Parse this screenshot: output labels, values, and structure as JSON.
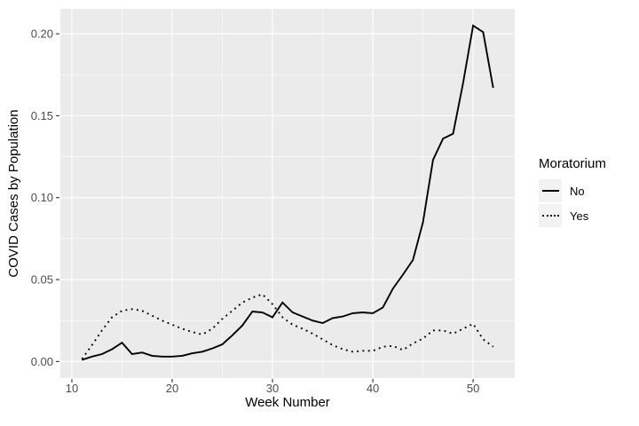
{
  "chart_data": {
    "type": "line",
    "title": "",
    "xlabel": "Week Number",
    "ylabel": "COVID Cases by Population",
    "x": [
      11,
      12,
      13,
      14,
      15,
      16,
      17,
      18,
      19,
      20,
      21,
      22,
      23,
      24,
      25,
      26,
      27,
      28,
      29,
      30,
      31,
      32,
      33,
      34,
      35,
      36,
      37,
      38,
      39,
      40,
      41,
      42,
      43,
      44,
      45,
      46,
      47,
      48,
      49,
      50,
      51,
      52
    ],
    "series": [
      {
        "name": "No",
        "linetype": "solid",
        "values": [
          0.001,
          0.003,
          0.0045,
          0.0075,
          0.0115,
          0.0045,
          0.0055,
          0.0035,
          0.003,
          0.003,
          0.0035,
          0.005,
          0.006,
          0.008,
          0.0105,
          0.016,
          0.022,
          0.0305,
          0.03,
          0.027,
          0.036,
          0.03,
          0.0275,
          0.025,
          0.0235,
          0.0265,
          0.0275,
          0.0295,
          0.03,
          0.0295,
          0.033,
          0.0445,
          0.053,
          0.062,
          0.085,
          0.123,
          0.136,
          0.139,
          0.17,
          0.205,
          0.201,
          0.167
        ]
      },
      {
        "name": "Yes",
        "linetype": "dotted",
        "values": [
          0.0015,
          0.01,
          0.019,
          0.027,
          0.031,
          0.032,
          0.031,
          0.028,
          0.025,
          0.0225,
          0.02,
          0.018,
          0.0165,
          0.02,
          0.026,
          0.031,
          0.036,
          0.039,
          0.041,
          0.035,
          0.027,
          0.0225,
          0.02,
          0.017,
          0.0135,
          0.01,
          0.0075,
          0.006,
          0.0065,
          0.0065,
          0.009,
          0.0095,
          0.007,
          0.011,
          0.014,
          0.019,
          0.019,
          0.017,
          0.02,
          0.023,
          0.0135,
          0.009
        ]
      }
    ],
    "xlim": [
      8.85,
      54.15
    ],
    "ylim": [
      -0.0101,
      0.2152
    ],
    "x_major_ticks": [
      10,
      20,
      30,
      40,
      50
    ],
    "x_minor_ticks": [
      15,
      25,
      35,
      45
    ],
    "x_tick_labels": [
      "10",
      "20",
      "30",
      "40",
      "50"
    ],
    "y_major_ticks": [
      0.0,
      0.05,
      0.1,
      0.15,
      0.2
    ],
    "y_minor_ticks": [
      0.025,
      0.075,
      0.125,
      0.175
    ],
    "y_tick_labels": [
      "0.00",
      "0.05",
      "0.10",
      "0.15",
      "0.20"
    ],
    "grid": "on",
    "legend": {
      "title": "Moratorium",
      "position": "right",
      "entries": [
        {
          "label": "No",
          "linetype": "solid"
        },
        {
          "label": "Yes",
          "linetype": "dotted"
        }
      ]
    },
    "colors": {
      "panel_background": "#EBEBEB",
      "gridline": "#FFFFFF",
      "line": "#000000",
      "tick_text": "#4D4D4D",
      "tick_mark": "#333333",
      "legend_key_background": "#F2F2F2"
    }
  }
}
